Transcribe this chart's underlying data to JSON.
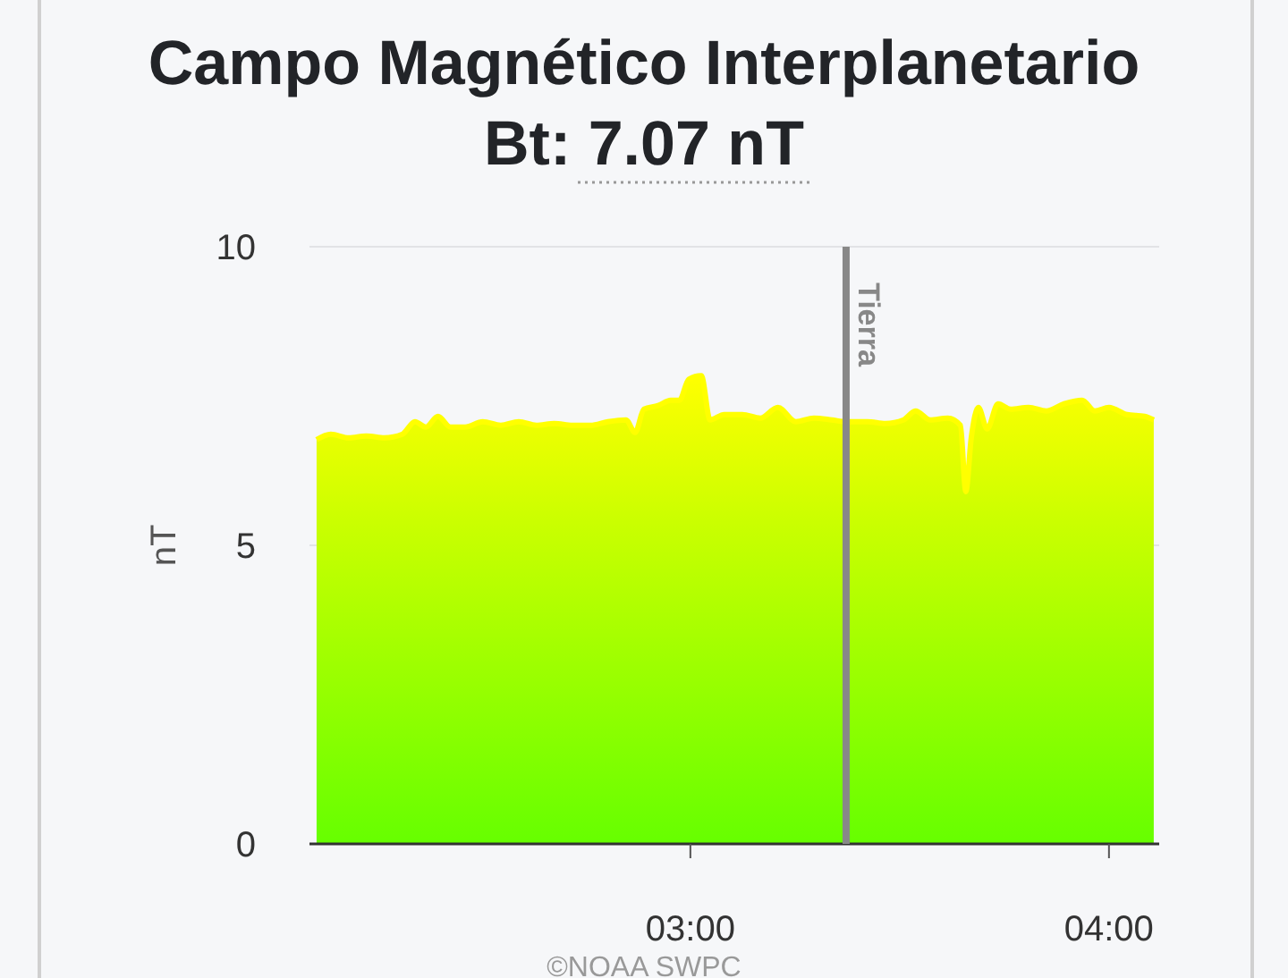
{
  "chart_data": {
    "type": "area",
    "title": "Campo Magnético Interplanetario",
    "subtitle": "Bt: 7.07 nT",
    "ylabel": "nT",
    "annotations": [
      "©NOAA SWPC"
    ],
    "x": [
      2.107,
      2.141,
      2.184,
      2.226,
      2.269,
      2.312,
      2.342,
      2.368,
      2.397,
      2.427,
      2.462,
      2.504,
      2.547,
      2.59,
      2.632,
      2.675,
      2.718,
      2.761,
      2.803,
      2.846,
      2.868,
      2.889,
      2.923,
      2.953,
      2.974,
      2.996,
      3.026,
      3.047,
      3.081,
      3.124,
      3.167,
      3.209,
      3.252,
      3.295,
      3.338,
      3.372,
      3.423,
      3.466,
      3.509,
      3.538,
      3.573,
      3.615,
      3.645,
      3.658,
      3.671,
      3.688,
      3.709,
      3.735,
      3.765,
      3.808,
      3.85,
      3.893,
      3.936,
      3.966,
      4.0,
      4.043,
      4.085,
      4.107
    ],
    "series": [
      {
        "color": "#ffff00",
        "values": [
          6.77,
          6.86,
          6.8,
          6.83,
          6.8,
          6.86,
          7.07,
          6.98,
          7.16,
          6.98,
          6.98,
          7.07,
          7.01,
          7.07,
          7.01,
          7.04,
          7.01,
          7.01,
          7.07,
          7.1,
          6.89,
          7.28,
          7.34,
          7.43,
          7.43,
          7.78,
          7.84,
          7.1,
          7.19,
          7.19,
          7.13,
          7.31,
          7.07,
          7.13,
          7.1,
          7.07,
          7.07,
          7.04,
          7.1,
          7.25,
          7.1,
          7.13,
          7.01,
          5.9,
          6.8,
          7.31,
          6.95,
          7.37,
          7.28,
          7.31,
          7.25,
          7.37,
          7.43,
          7.25,
          7.31,
          7.19,
          7.16,
          7.1
        ]
      }
    ],
    "xlim": [
      2.09,
      4.12
    ],
    "xticks": [
      {
        "value": 3,
        "label": "03:00"
      },
      {
        "value": 4,
        "label": "04:00"
      }
    ],
    "ylim": [
      0,
      10
    ],
    "yticks": [
      0,
      5,
      10
    ],
    "grid": "y",
    "ref_lines": [
      {
        "axis": "x",
        "value": 3.372,
        "label": "Tierra",
        "color": "#888888"
      }
    ]
  }
}
